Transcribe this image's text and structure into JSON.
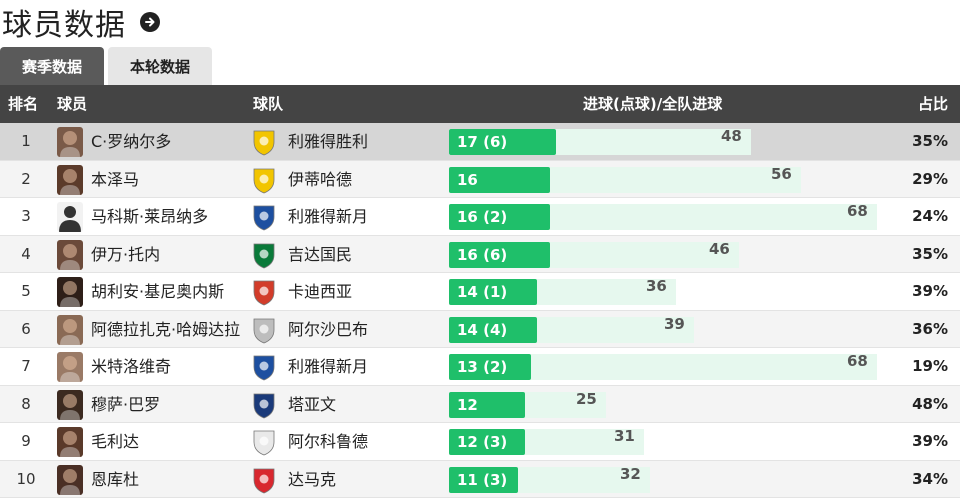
{
  "page": {
    "title": "球员数据"
  },
  "tabs": [
    {
      "label": "赛季数据",
      "active": true
    },
    {
      "label": "本轮数据",
      "active": false
    }
  ],
  "columns": {
    "rank": "排名",
    "player": "球员",
    "team": "球队",
    "goals": "进球(点球)/全队进球",
    "share": "占比"
  },
  "colors": {
    "player_bar": "#1fbf6a",
    "team_bar": "#e6f8ee",
    "header_bg": "#444444",
    "tab_active": "#5a5a5a"
  },
  "rows": [
    {
      "rank": "1",
      "player": "C·罗纳尔多",
      "team": "利雅得胜利",
      "goals": 17,
      "goals_label": "17 (6)",
      "team_goals": 48,
      "team_goals_label": "48",
      "share": "35%",
      "club_icon": "al-nassr-crest",
      "avatar": "player-photo"
    },
    {
      "rank": "2",
      "player": "本泽马",
      "team": "伊蒂哈德",
      "goals": 16,
      "goals_label": "16",
      "team_goals": 56,
      "team_goals_label": "56",
      "share": "29%",
      "club_icon": "al-ittihad-crest",
      "avatar": "player-photo"
    },
    {
      "rank": "3",
      "player": "马科斯·莱昂纳多",
      "team": "利雅得新月",
      "goals": 16,
      "goals_label": "16 (2)",
      "team_goals": 68,
      "team_goals_label": "68",
      "share": "24%",
      "club_icon": "al-hilal-crest",
      "avatar": "player-silhouette"
    },
    {
      "rank": "4",
      "player": "伊万·托内",
      "team": "吉达国民",
      "goals": 16,
      "goals_label": "16 (6)",
      "team_goals": 46,
      "team_goals_label": "46",
      "share": "35%",
      "club_icon": "al-ahli-crest",
      "avatar": "player-photo"
    },
    {
      "rank": "5",
      "player": "胡利安·基尼奥内斯",
      "team": "卡迪西亚",
      "goals": 14,
      "goals_label": "14 (1)",
      "team_goals": 36,
      "team_goals_label": "36",
      "share": "39%",
      "club_icon": "al-qadsiah-crest",
      "avatar": "player-photo"
    },
    {
      "rank": "6",
      "player": "阿德拉扎克·哈姆达拉",
      "team": "阿尔沙巴布",
      "goals": 14,
      "goals_label": "14 (4)",
      "team_goals": 39,
      "team_goals_label": "39",
      "share": "36%",
      "club_icon": "al-shabab-crest",
      "avatar": "player-photo"
    },
    {
      "rank": "7",
      "player": "米特洛维奇",
      "team": "利雅得新月",
      "goals": 13,
      "goals_label": "13 (2)",
      "team_goals": 68,
      "team_goals_label": "68",
      "share": "19%",
      "club_icon": "al-hilal-crest",
      "avatar": "player-photo"
    },
    {
      "rank": "8",
      "player": "穆萨·巴罗",
      "team": "塔亚文",
      "goals": 12,
      "goals_label": "12",
      "team_goals": 25,
      "team_goals_label": "25",
      "share": "48%",
      "club_icon": "al-taawoun-crest",
      "avatar": "player-photo"
    },
    {
      "rank": "9",
      "player": "毛利达",
      "team": "阿尔科鲁德",
      "goals": 12,
      "goals_label": "12 (3)",
      "team_goals": 31,
      "team_goals_label": "31",
      "share": "39%",
      "club_icon": "al-kholood-crest",
      "avatar": "player-photo"
    },
    {
      "rank": "10",
      "player": "恩库杜",
      "team": "达马克",
      "goals": 11,
      "goals_label": "11 (3)",
      "team_goals": 32,
      "team_goals_label": "32",
      "share": "34%",
      "club_icon": "damac-crest",
      "avatar": "player-photo"
    }
  ]
}
